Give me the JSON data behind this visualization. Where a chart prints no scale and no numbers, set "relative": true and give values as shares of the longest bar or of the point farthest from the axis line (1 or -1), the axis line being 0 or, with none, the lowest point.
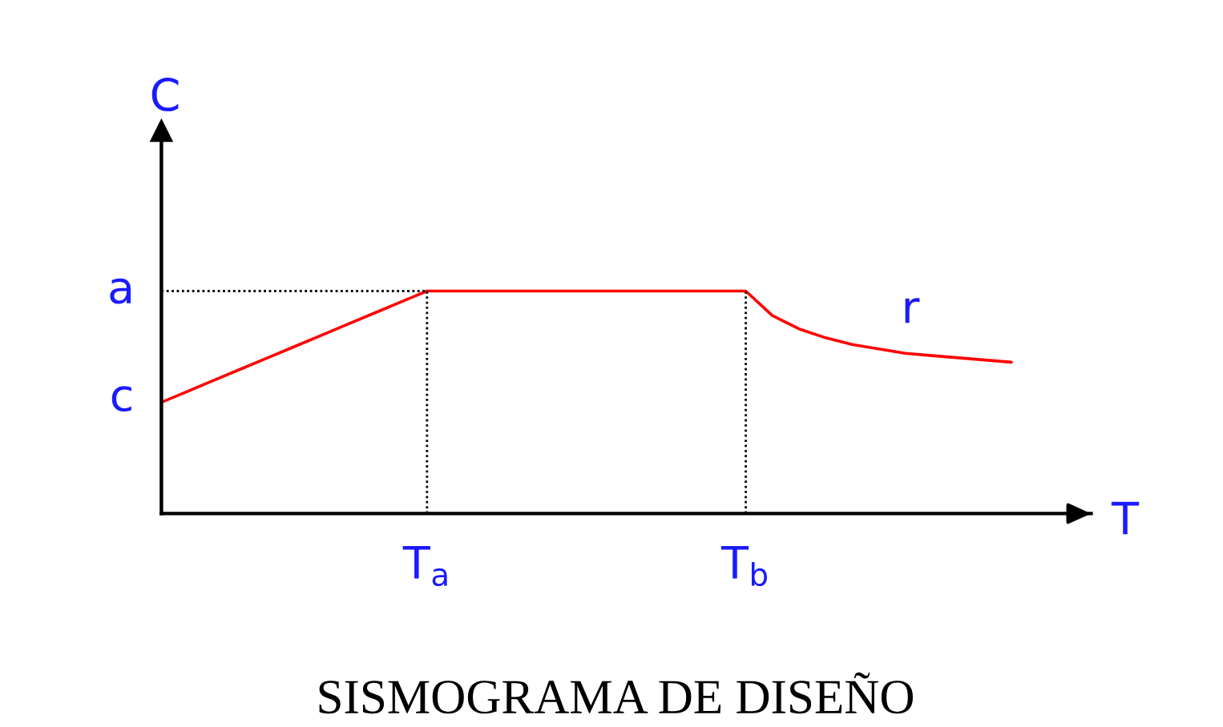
{
  "chart_data": {
    "type": "line",
    "title": "SISMOGRAMA DE DISEÑO",
    "xlabel": "T",
    "ylabel": "C",
    "relative": true,
    "marker": "none",
    "ylim": [
      0,
      1.72
    ],
    "categories": [
      null,
      null,
      null,
      null,
      null,
      null,
      null,
      null,
      null,
      null,
      "T$_{a}$",
      null,
      null,
      null,
      null,
      null,
      null,
      null,
      null,
      null,
      null,
      null,
      "T$_{b}$",
      null,
      null,
      null,
      null,
      null,
      null,
      null,
      null,
      null,
      null,
      null,
      null,
      null
    ],
    "annotations": [
      "c",
      "r"
    ],
    "ref_lines": [
      {
        "axis": "y",
        "value": 1,
        "label": "a",
        "color": "#000000",
        "line_style": "dotted"
      },
      {
        "axis": "x",
        "value": "T$_{a}$",
        "color": "#000000",
        "line_style": "dotted"
      },
      {
        "axis": "x",
        "value": "T$_{b}$",
        "color": "#000000",
        "line_style": "dotted"
      }
    ],
    "series": [
      {
        "color": "#ff0000",
        "line_style": "solid",
        "values": [
          0.5,
          0.55,
          0.6,
          0.65,
          0.7,
          0.75,
          0.8,
          0.85,
          0.9,
          0.95,
          1,
          1,
          1,
          1,
          1,
          1,
          1,
          1,
          1,
          1,
          1,
          1,
          1,
          0.89,
          0.83,
          0.79,
          0.76,
          0.74,
          0.72,
          0.71,
          0.7,
          0.69,
          0.68,
          null,
          null,
          null
        ]
      }
    ]
  }
}
